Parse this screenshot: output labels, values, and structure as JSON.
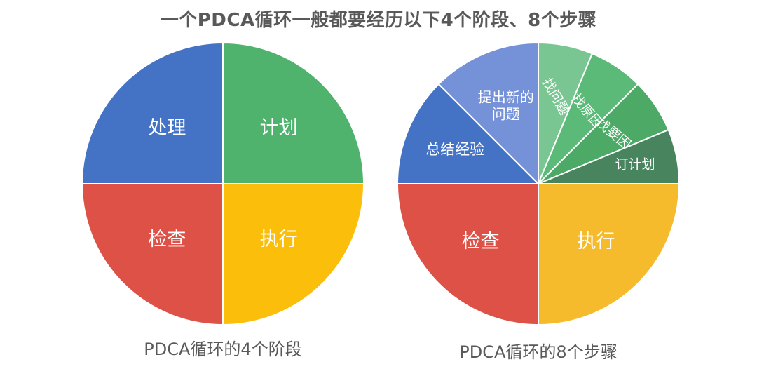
{
  "title": "一个PDCA循环一般都要经历以下4个阶段、8个步骤",
  "chart_data": [
    {
      "type": "pie",
      "title": "PDCA循环的4个阶段",
      "slices": [
        {
          "label": "计划",
          "value": 25,
          "color": "#4fb36e"
        },
        {
          "label": "执行",
          "value": 25,
          "color": "#fbbf0b"
        },
        {
          "label": "检查",
          "value": 25,
          "color": "#de5147"
        },
        {
          "label": "处理",
          "value": 25,
          "color": "#4473c5"
        }
      ]
    },
    {
      "type": "pie",
      "title": "PDCA循环的8个步骤",
      "slices": [
        {
          "label": "找问题",
          "value": 6.25,
          "color": "#7ac692"
        },
        {
          "label": "找原因",
          "value": 6.25,
          "color": "#5cba78"
        },
        {
          "label": "找要因",
          "value": 6.25,
          "color": "#4caa66"
        },
        {
          "label": "订计划",
          "value": 6.25,
          "color": "#48855f"
        },
        {
          "label": "执行",
          "value": 25,
          "color": "#f6bb2d"
        },
        {
          "label": "检查",
          "value": 25,
          "color": "#de5147"
        },
        {
          "label": "总结经验",
          "value": 12.5,
          "color": "#4473c5"
        },
        {
          "label": "提出新的问题",
          "value": 12.5,
          "color": "#7592d8"
        }
      ]
    }
  ]
}
